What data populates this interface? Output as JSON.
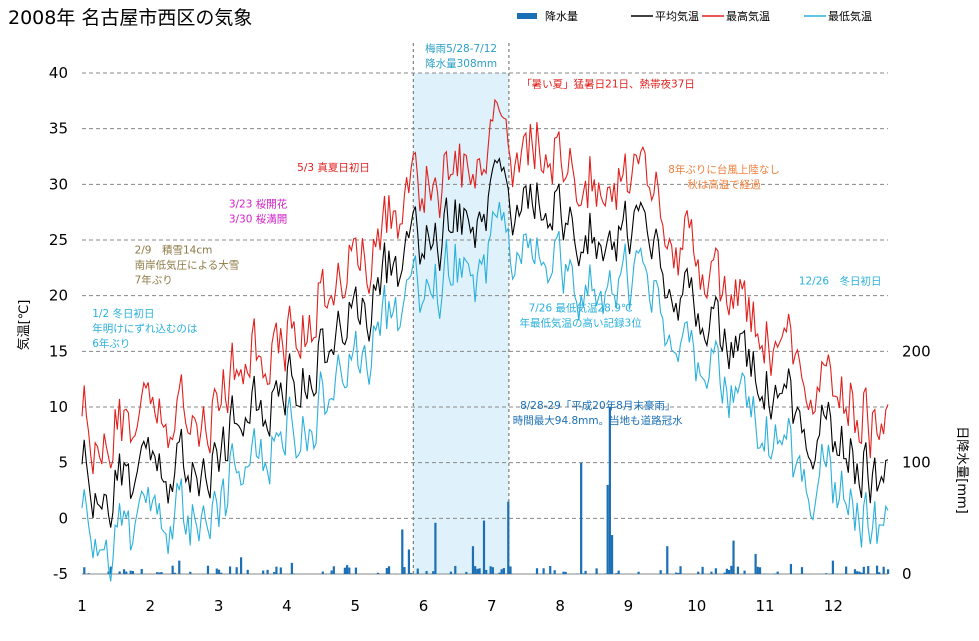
{
  "chart_data": {
    "type": "line+bar",
    "title": "2008年 名古屋市西区の気象",
    "ylabel_left": "気温[℃]",
    "ylabel_right": "日降水量[mm]",
    "y_left_range": [
      -5,
      40
    ],
    "y_left_ticks": [
      "40",
      "35",
      "30",
      "25",
      "20",
      "15",
      "10",
      "5",
      "0",
      "-5"
    ],
    "y_right_range": [
      0,
      450
    ],
    "y_right_ticks": [
      "200",
      "100",
      "0"
    ],
    "x_ticks": [
      "1",
      "2",
      "3",
      "4",
      "5",
      "6",
      "7",
      "8",
      "9",
      "10",
      "11",
      "12"
    ],
    "grid": "horizontal dashed",
    "legend_position": "top-right",
    "legend": [
      {
        "name": "降水量",
        "color": "#1a6fb5",
        "kind": "bar"
      },
      {
        "name": "平均気温",
        "color": "#000000",
        "kind": "line"
      },
      {
        "name": "最高気温",
        "color": "#e0201c",
        "kind": "line"
      },
      {
        "name": "最低気温",
        "color": "#2ab0dc",
        "kind": "line"
      }
    ],
    "rainy_season": {
      "start_month": 5.85,
      "end_month": 7.25,
      "label1": "梅雨5/28-7/12",
      "label2": "降水量308mm"
    },
    "annotations": [
      {
        "lines": [
          "1/2 冬日初日",
          "年明けにずれ込むのは",
          "6年ぶり"
        ],
        "color": "#2ab0dc",
        "anchor": "start",
        "month": 1.15,
        "temp": 18.1
      },
      {
        "lines": [
          "2/9　積雪14cm",
          "南岸低気圧による大雪",
          "7年ぶり"
        ],
        "color": "#8c7a45",
        "anchor": "start",
        "month": 1.77,
        "temp": 23.8
      },
      {
        "lines": [
          "3/23 桜開花",
          "3/30 桜満開"
        ],
        "color": "#d020c8",
        "anchor": "start",
        "month": 3.15,
        "temp": 27.9
      },
      {
        "lines": [
          "5/3 真夏日初日"
        ],
        "color": "#e0201c",
        "anchor": "start",
        "month": 4.15,
        "temp": 31.2
      },
      {
        "lines": [
          "「暑い夏」猛暑日21日、熱帯夜37日"
        ],
        "color": "#e0201c",
        "anchor": "start",
        "month": 7.43,
        "temp": 38.7
      },
      {
        "lines": [
          "8年ぶりに台風上陸なし",
          "秋は高温で経過"
        ],
        "color": "#f07f3c",
        "anchor": "middle",
        "month": 10.4,
        "temp": 31.0
      },
      {
        "lines": [
          "12/26　冬日初日"
        ],
        "color": "#2ab0dc",
        "anchor": "middle",
        "month": 12.1,
        "temp": 21.0
      },
      {
        "lines": [
          "7/26 最低気温28.9℃",
          "年最低気温の高い記録3位"
        ],
        "color": "#2ab0dc",
        "anchor": "middle",
        "month": 8.3,
        "temp": 18.6
      },
      {
        "lines": [
          "8/28-29「平成20年8月末豪雨」",
          "時間最大94.8mm。当地も道路冠水"
        ],
        "color": "#1a6fb5",
        "anchor": "middle",
        "month": 8.55,
        "temp": 9.8
      }
    ],
    "series_daily_note": "daily 2008 series drawn by script",
    "rain_events": [
      {
        "day": 44,
        "mm": 12
      },
      {
        "day": 72,
        "mm": 15
      },
      {
        "day": 95,
        "mm": 10
      },
      {
        "day": 120,
        "mm": 8
      },
      {
        "day": 145,
        "mm": 40
      },
      {
        "day": 148,
        "mm": 22
      },
      {
        "day": 160,
        "mm": 46
      },
      {
        "day": 177,
        "mm": 25
      },
      {
        "day": 182,
        "mm": 48
      },
      {
        "day": 193,
        "mm": 65
      },
      {
        "day": 226,
        "mm": 100
      },
      {
        "day": 238,
        "mm": 80
      },
      {
        "day": 239,
        "mm": 150
      },
      {
        "day": 240,
        "mm": 35
      },
      {
        "day": 265,
        "mm": 25
      },
      {
        "day": 295,
        "mm": 30
      },
      {
        "day": 305,
        "mm": 18
      },
      {
        "day": 321,
        "mm": 9
      },
      {
        "day": 340,
        "mm": 12
      }
    ]
  }
}
